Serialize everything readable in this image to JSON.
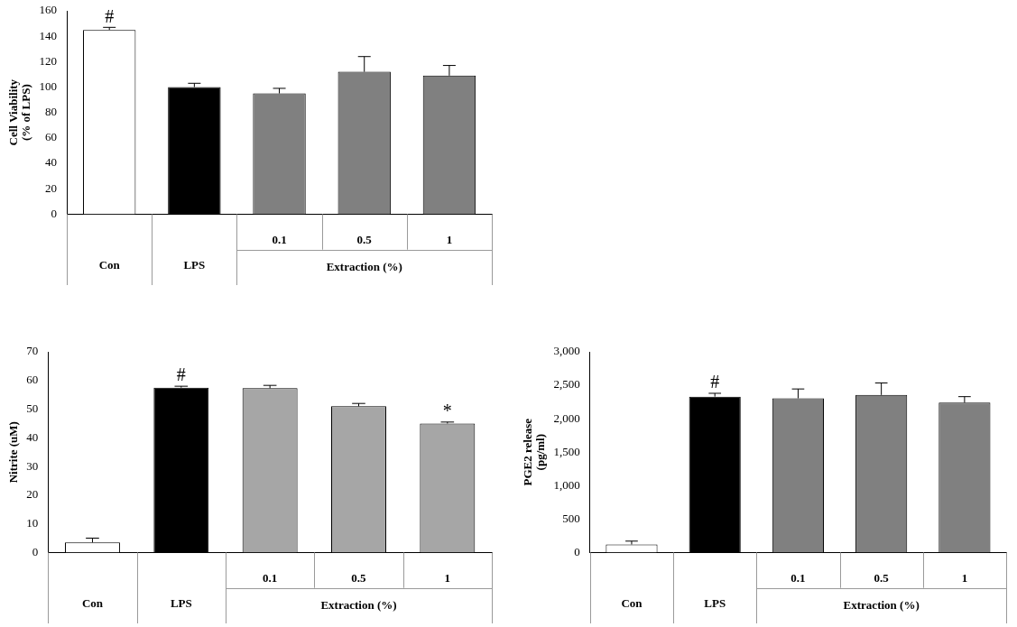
{
  "chart_data": [
    {
      "type": "bar",
      "y_label": [
        "Cell Viability",
        "(% of LPS)"
      ],
      "categories": [
        "Con",
        "LPS",
        "0.1",
        "0.5",
        "1"
      ],
      "category_groups": [
        {
          "label": "Extraction (%)",
          "categories": [
            "0.1",
            "0.5",
            "1"
          ]
        }
      ],
      "values": [
        145,
        100,
        95,
        112,
        109
      ],
      "errors": [
        2,
        3,
        4,
        12,
        8
      ],
      "colors": [
        "#ffffff",
        "#000000",
        "#808080",
        "#808080",
        "#808080"
      ],
      "annotations": [
        {
          "category": "Con",
          "text": "#"
        }
      ],
      "ylim": [
        0,
        160
      ],
      "yticks": [
        0,
        20,
        40,
        60,
        80,
        100,
        120,
        140,
        160
      ],
      "grid": false
    },
    {
      "type": "bar",
      "y_label": "Nitrite (uM)",
      "categories": [
        "Con",
        "LPS",
        "0.1",
        "0.5",
        "1"
      ],
      "category_groups": [
        {
          "label": "Extraction (%)",
          "categories": [
            "0.1",
            "0.5",
            "1"
          ]
        }
      ],
      "values": [
        3.5,
        57.5,
        57.3,
        51,
        45
      ],
      "errors": [
        1.5,
        0.5,
        1,
        1,
        0.5
      ],
      "colors": [
        "#ffffff",
        "#000000",
        "#a6a6a6",
        "#a6a6a6",
        "#a6a6a6"
      ],
      "annotations": [
        {
          "category": "LPS",
          "text": "#"
        },
        {
          "category": "1",
          "text": "*"
        }
      ],
      "ylim": [
        0,
        70
      ],
      "yticks": [
        0,
        10,
        20,
        30,
        40,
        50,
        60,
        70
      ],
      "grid": false
    },
    {
      "type": "bar",
      "y_label": [
        "PGE2 release",
        "(pg/ml)"
      ],
      "categories": [
        "Con",
        "LPS",
        "0.1",
        "0.5",
        "1"
      ],
      "category_groups": [
        {
          "label": "Extraction (%)",
          "categories": [
            "0.1",
            "0.5",
            "1"
          ]
        }
      ],
      "values": [
        120,
        2330,
        2305,
        2355,
        2240
      ],
      "errors": [
        50,
        50,
        140,
        180,
        90
      ],
      "colors": [
        "#ffffff",
        "#000000",
        "#808080",
        "#808080",
        "#808080"
      ],
      "annotations": [
        {
          "category": "LPS",
          "text": "#"
        }
      ],
      "ylim": [
        0,
        3000
      ],
      "yticks": [
        0,
        500,
        1000,
        1500,
        2000,
        2500,
        3000
      ],
      "grid": false
    }
  ]
}
